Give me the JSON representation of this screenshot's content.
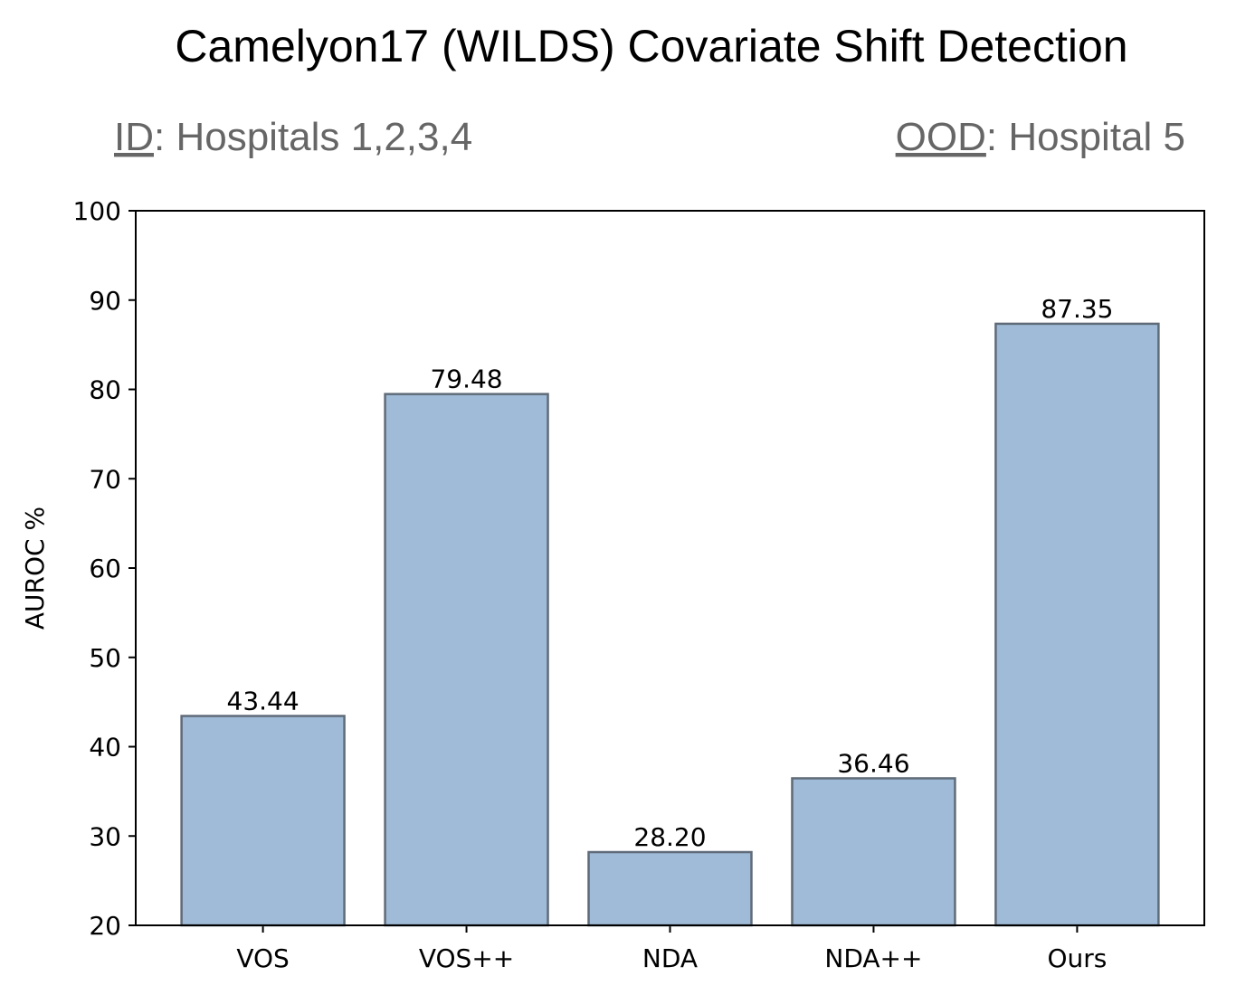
{
  "colors": {
    "bar_fill": "#9fbbd8",
    "bar_edge": "#5f6b78",
    "subtitle": "#666666"
  },
  "chart_data": {
    "type": "bar",
    "title": "Camelyon17 (WILDS) Covariate Shift Detection",
    "subtitle_left": {
      "key": "ID",
      "value": "Hospitals 1,2,3,4"
    },
    "subtitle_right": {
      "key": "OOD",
      "value": "Hospital 5"
    },
    "categories": [
      "VOS",
      "VOS++",
      "NDA",
      "NDA++",
      "Ours"
    ],
    "values": [
      43.44,
      79.48,
      28.2,
      36.46,
      87.35
    ],
    "value_labels": [
      "43.44",
      "79.48",
      "28.20",
      "36.46",
      "87.35"
    ],
    "xlabel": "",
    "ylabel": "AUROC %",
    "ylim": [
      20,
      100
    ],
    "yticks": [
      20,
      30,
      40,
      50,
      60,
      70,
      80,
      90,
      100
    ],
    "grid": false,
    "legend": "none"
  }
}
